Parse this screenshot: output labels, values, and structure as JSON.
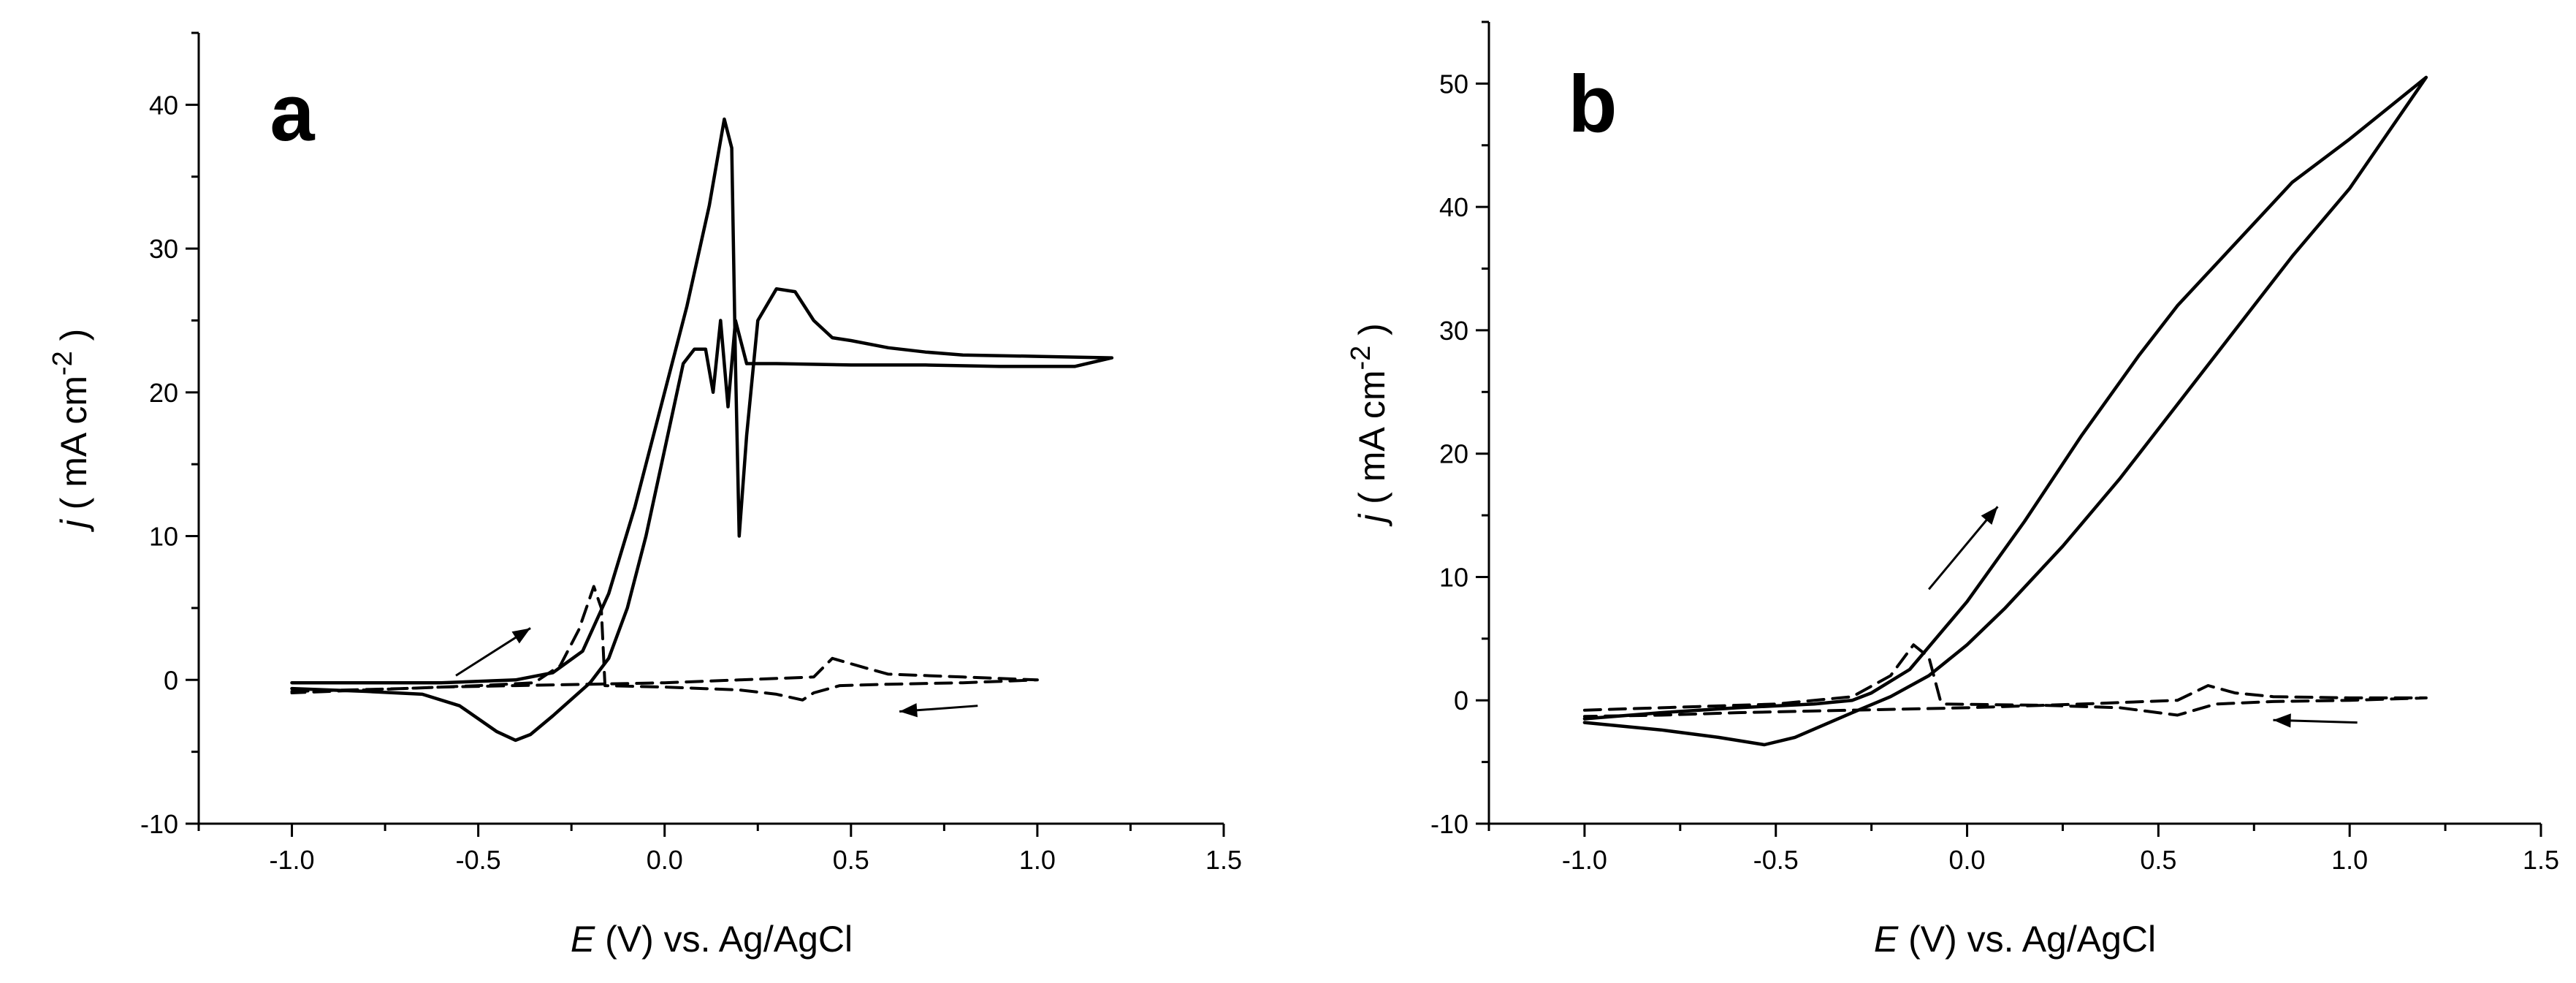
{
  "chart_data": [
    {
      "type": "line",
      "panel_label": "a",
      "xlabel": {
        "var": "E",
        "rest": " (V) vs. Ag/AgCl"
      },
      "ylabel": {
        "var": "j",
        "open": " ( mA cm",
        "sup": "-2",
        "close": " )"
      },
      "xlim": [
        -1.25,
        1.5
      ],
      "ylim": [
        -10,
        45
      ],
      "xticks": [
        -1.0,
        -0.5,
        0.0,
        0.5,
        1.0,
        1.5
      ],
      "xtick_labels": [
        "-1.0",
        "-0.5",
        "0.0",
        "0.5",
        "1.0",
        "1.5"
      ],
      "yticks": [
        -10,
        0,
        10,
        20,
        30,
        40
      ],
      "ytick_labels": [
        "-10",
        "0",
        "10",
        "20",
        "30",
        "40"
      ],
      "series": [
        {
          "name": "solid-cycle",
          "style": "solid",
          "points": [
            [
              -1.0,
              -0.2
            ],
            [
              -0.6,
              -0.2
            ],
            [
              -0.4,
              0.0
            ],
            [
              -0.3,
              0.5
            ],
            [
              -0.22,
              2.0
            ],
            [
              -0.15,
              6.0
            ],
            [
              -0.08,
              12.0
            ],
            [
              0.0,
              20.0
            ],
            [
              0.06,
              26.0
            ],
            [
              0.12,
              33.0
            ],
            [
              0.16,
              39.0
            ],
            [
              0.18,
              37.0
            ],
            [
              0.19,
              22.0
            ],
            [
              0.2,
              10.0
            ],
            [
              0.22,
              17.0
            ],
            [
              0.25,
              25.0
            ],
            [
              0.3,
              27.2
            ],
            [
              0.35,
              27.0
            ],
            [
              0.4,
              25.0
            ],
            [
              0.45,
              23.8
            ],
            [
              0.5,
              23.6
            ],
            [
              0.6,
              23.1
            ],
            [
              0.7,
              22.8
            ],
            [
              0.8,
              22.6
            ],
            [
              1.0,
              22.5
            ],
            [
              1.2,
              22.4
            ],
            [
              1.1,
              21.8
            ],
            [
              0.9,
              21.8
            ],
            [
              0.7,
              21.9
            ],
            [
              0.5,
              21.9
            ],
            [
              0.3,
              22.0
            ],
            [
              0.22,
              22.0
            ],
            [
              0.19,
              25.0
            ],
            [
              0.17,
              19.0
            ],
            [
              0.15,
              25.0
            ],
            [
              0.13,
              20.0
            ],
            [
              0.11,
              23.0
            ],
            [
              0.08,
              23.0
            ],
            [
              0.05,
              22.0
            ],
            [
              0.0,
              16.0
            ],
            [
              -0.05,
              10.0
            ],
            [
              -0.1,
              5.0
            ],
            [
              -0.15,
              1.5
            ],
            [
              -0.2,
              -0.2
            ],
            [
              -0.3,
              -2.5
            ],
            [
              -0.36,
              -3.8
            ],
            [
              -0.4,
              -4.2
            ],
            [
              -0.45,
              -3.6
            ],
            [
              -0.55,
              -1.8
            ],
            [
              -0.65,
              -1.0
            ],
            [
              -0.8,
              -0.8
            ],
            [
              -1.0,
              -0.6
            ]
          ]
        },
        {
          "name": "dashed-cycle",
          "style": "dashed",
          "points": [
            [
              -1.0,
              -0.8
            ],
            [
              -0.7,
              -0.6
            ],
            [
              -0.5,
              -0.4
            ],
            [
              -0.35,
              -0.2
            ],
            [
              -0.28,
              1.0
            ],
            [
              -0.23,
              3.5
            ],
            [
              -0.19,
              6.5
            ],
            [
              -0.17,
              5.0
            ],
            [
              -0.16,
              -0.4
            ],
            [
              0.0,
              -0.5
            ],
            [
              0.2,
              -0.7
            ],
            [
              0.3,
              -1.0
            ],
            [
              0.37,
              -1.4
            ],
            [
              0.4,
              -0.9
            ],
            [
              0.47,
              -0.4
            ],
            [
              0.6,
              -0.3
            ],
            [
              0.8,
              -0.2
            ],
            [
              1.0,
              0.0
            ],
            [
              0.8,
              0.2
            ],
            [
              0.6,
              0.4
            ],
            [
              0.53,
              0.9
            ],
            [
              0.45,
              1.5
            ],
            [
              0.4,
              0.2
            ],
            [
              0.2,
              0.0
            ],
            [
              0.0,
              -0.2
            ],
            [
              -0.2,
              -0.3
            ],
            [
              -0.4,
              -0.4
            ],
            [
              -0.6,
              -0.5
            ],
            [
              -0.8,
              -0.7
            ],
            [
              -1.0,
              -0.9
            ]
          ]
        }
      ],
      "arrows": [
        {
          "from": [
            -0.56,
            0.3
          ],
          "to": [
            -0.36,
            3.6
          ]
        },
        {
          "from": [
            0.84,
            -1.8
          ],
          "to": [
            0.63,
            -2.2
          ]
        }
      ]
    },
    {
      "type": "line",
      "panel_label": "b",
      "xlabel": {
        "var": "E",
        "rest": " (V) vs. Ag/AgCl"
      },
      "ylabel": {
        "var": "j",
        "open": " ( mA cm",
        "sup": "-2",
        "close": " )"
      },
      "xlim": [
        -1.25,
        1.5
      ],
      "ylim": [
        -10,
        55
      ],
      "xticks": [
        -1.0,
        -0.5,
        0.0,
        0.5,
        1.0,
        1.5
      ],
      "xtick_labels": [
        "-1.0",
        "-0.5",
        "0.0",
        "0.5",
        "1.0",
        "1.5"
      ],
      "yticks": [
        -10,
        0,
        10,
        20,
        30,
        40,
        50
      ],
      "ytick_labels": [
        "-10",
        "0",
        "10",
        "20",
        "30",
        "40",
        "50"
      ],
      "series": [
        {
          "name": "solid-cycle",
          "style": "solid",
          "points": [
            [
              -1.0,
              -1.5
            ],
            [
              -0.8,
              -1.0
            ],
            [
              -0.6,
              -0.6
            ],
            [
              -0.4,
              -0.3
            ],
            [
              -0.3,
              0.0
            ],
            [
              -0.25,
              0.6
            ],
            [
              -0.15,
              2.5
            ],
            [
              0.0,
              8.0
            ],
            [
              0.15,
              14.5
            ],
            [
              0.3,
              21.5
            ],
            [
              0.45,
              28.0
            ],
            [
              0.55,
              32.0
            ],
            [
              0.7,
              37.0
            ],
            [
              0.85,
              42.0
            ],
            [
              1.0,
              45.5
            ],
            [
              1.1,
              48.0
            ],
            [
              1.2,
              50.5
            ],
            [
              1.1,
              46.0
            ],
            [
              1.0,
              41.5
            ],
            [
              0.85,
              36.0
            ],
            [
              0.7,
              30.0
            ],
            [
              0.55,
              24.0
            ],
            [
              0.4,
              18.0
            ],
            [
              0.25,
              12.5
            ],
            [
              0.1,
              7.5
            ],
            [
              0.0,
              4.5
            ],
            [
              -0.1,
              2.0
            ],
            [
              -0.2,
              0.3
            ],
            [
              -0.3,
              -1.0
            ],
            [
              -0.45,
              -3.0
            ],
            [
              -0.53,
              -3.6
            ],
            [
              -0.65,
              -3.0
            ],
            [
              -0.8,
              -2.4
            ],
            [
              -1.0,
              -1.8
            ]
          ]
        },
        {
          "name": "dashed-cycle",
          "style": "dashed",
          "points": [
            [
              -1.0,
              -0.8
            ],
            [
              -0.7,
              -0.5
            ],
            [
              -0.5,
              -0.3
            ],
            [
              -0.3,
              0.3
            ],
            [
              -0.2,
              2.0
            ],
            [
              -0.14,
              4.5
            ],
            [
              -0.1,
              3.5
            ],
            [
              -0.07,
              0.0
            ],
            [
              -0.06,
              -0.3
            ],
            [
              0.2,
              -0.4
            ],
            [
              0.4,
              -0.6
            ],
            [
              0.55,
              -1.2
            ],
            [
              0.65,
              -0.3
            ],
            [
              0.8,
              -0.1
            ],
            [
              1.0,
              0.0
            ],
            [
              1.2,
              0.2
            ],
            [
              1.0,
              0.2
            ],
            [
              0.8,
              0.3
            ],
            [
              0.7,
              0.6
            ],
            [
              0.63,
              1.2
            ],
            [
              0.55,
              0.0
            ],
            [
              0.3,
              -0.3
            ],
            [
              0.0,
              -0.6
            ],
            [
              -0.3,
              -0.8
            ],
            [
              -0.6,
              -1.0
            ],
            [
              -0.8,
              -1.2
            ],
            [
              -1.0,
              -1.3
            ]
          ]
        }
      ],
      "arrows": [
        {
          "from": [
            -0.1,
            9.0
          ],
          "to": [
            0.08,
            15.7
          ]
        },
        {
          "from": [
            1.02,
            -1.8
          ],
          "to": [
            0.8,
            -1.6
          ]
        }
      ]
    }
  ]
}
